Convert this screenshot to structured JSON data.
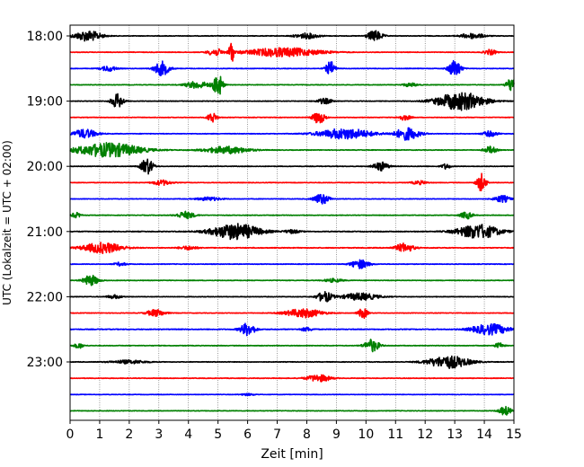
{
  "chart_data": {
    "type": "line",
    "title": "",
    "xlabel": "Zeit  [min]",
    "ylabel": "UTC (Lokalzeit = UTC + 02:00)",
    "xlim": [
      0,
      15
    ],
    "x_ticks": [
      "0",
      "1",
      "2",
      "3",
      "4",
      "5",
      "6",
      "7",
      "8",
      "9",
      "10",
      "11",
      "12",
      "13",
      "14",
      "15"
    ],
    "y_ticks": [
      {
        "label": "18:00",
        "row": 0
      },
      {
        "label": "19:00",
        "row": 4
      },
      {
        "label": "20:00",
        "row": 8
      },
      {
        "label": "21:00",
        "row": 12
      },
      {
        "label": "22:00",
        "row": 16
      },
      {
        "label": "23:00",
        "row": 20
      }
    ],
    "grid": "vertical dotted",
    "row_count": 24,
    "minutes_per_row": 15,
    "colors": [
      "#000000",
      "#ff0000",
      "#0000ff",
      "#008000"
    ],
    "series": [
      {
        "start": "18:00",
        "color": "#000000",
        "noise": 0.3,
        "events": [
          [
            0.6,
            0.9,
            6
          ],
          [
            10.3,
            0.5,
            6
          ],
          [
            8,
            0.8,
            3
          ],
          [
            13.6,
            0.8,
            3
          ]
        ]
      },
      {
        "start": "18:15",
        "color": "#ff0000",
        "noise": 0.3,
        "events": [
          [
            7.2,
            2.5,
            5
          ],
          [
            5.45,
            0.15,
            14
          ],
          [
            4.9,
            0.5,
            4
          ],
          [
            14.2,
            0.4,
            3
          ]
        ]
      },
      {
        "start": "18:30",
        "color": "#0000ff",
        "noise": 0.3,
        "events": [
          [
            3.1,
            0.5,
            8
          ],
          [
            8.8,
            0.3,
            8
          ],
          [
            13,
            0.4,
            10
          ],
          [
            1.3,
            0.5,
            3
          ]
        ]
      },
      {
        "start": "18:45",
        "color": "#008000",
        "noise": 0.3,
        "events": [
          [
            5,
            0.3,
            14
          ],
          [
            4.3,
            0.8,
            4
          ],
          [
            14.9,
            0.3,
            8
          ],
          [
            11.5,
            0.5,
            2
          ]
        ]
      },
      {
        "start": "19:00",
        "color": "#000000",
        "noise": 0.3,
        "events": [
          [
            1.6,
            0.4,
            8
          ],
          [
            13.2,
            1.6,
            10
          ],
          [
            8.6,
            0.5,
            3
          ]
        ]
      },
      {
        "start": "19:15",
        "color": "#ff0000",
        "noise": 0.3,
        "events": [
          [
            4.8,
            0.3,
            6
          ],
          [
            8.4,
            0.4,
            7
          ],
          [
            11.3,
            0.4,
            3
          ]
        ]
      },
      {
        "start": "19:30",
        "color": "#0000ff",
        "noise": 0.3,
        "events": [
          [
            0.5,
            0.8,
            5
          ],
          [
            9.3,
            1.8,
            6
          ],
          [
            11.4,
            0.8,
            7
          ],
          [
            14.2,
            0.5,
            3
          ]
        ]
      },
      {
        "start": "19:45",
        "color": "#008000",
        "noise": 0.3,
        "events": [
          [
            1.3,
            2.2,
            8
          ],
          [
            5.3,
            1.5,
            4
          ],
          [
            14.2,
            0.4,
            4
          ]
        ]
      },
      {
        "start": "20:00",
        "color": "#000000",
        "noise": 0.3,
        "events": [
          [
            2.6,
            0.4,
            9
          ],
          [
            10.5,
            0.5,
            5
          ],
          [
            12.7,
            0.3,
            3
          ]
        ]
      },
      {
        "start": "20:15",
        "color": "#ff0000",
        "noise": 0.3,
        "events": [
          [
            3.1,
            0.6,
            3
          ],
          [
            13.9,
            0.3,
            10
          ],
          [
            11.8,
            0.5,
            2
          ]
        ]
      },
      {
        "start": "20:30",
        "color": "#0000ff",
        "noise": 0.3,
        "events": [
          [
            8.5,
            0.5,
            6
          ],
          [
            4.7,
            0.8,
            2
          ],
          [
            14.6,
            0.5,
            4
          ]
        ]
      },
      {
        "start": "20:45",
        "color": "#008000",
        "noise": 0.3,
        "events": [
          [
            3.9,
            0.6,
            4
          ],
          [
            13.4,
            0.4,
            4
          ],
          [
            0.2,
            0.3,
            3
          ]
        ]
      },
      {
        "start": "21:00",
        "color": "#000000",
        "noise": 0.4,
        "events": [
          [
            5.6,
            1.6,
            9
          ],
          [
            13.8,
            1.4,
            8
          ],
          [
            7.5,
            0.5,
            2
          ]
        ]
      },
      {
        "start": "21:15",
        "color": "#ff0000",
        "noise": 0.4,
        "events": [
          [
            1.1,
            1.3,
            6
          ],
          [
            11.3,
            0.6,
            5
          ],
          [
            4,
            0.6,
            2
          ]
        ]
      },
      {
        "start": "21:30",
        "color": "#0000ff",
        "noise": 0.3,
        "events": [
          [
            9.8,
            0.6,
            5
          ],
          [
            1.7,
            0.4,
            2
          ]
        ]
      },
      {
        "start": "21:45",
        "color": "#008000",
        "noise": 0.3,
        "events": [
          [
            0.7,
            0.5,
            6
          ],
          [
            8.9,
            0.6,
            2
          ]
        ]
      },
      {
        "start": "22:00",
        "color": "#000000",
        "noise": 0.3,
        "events": [
          [
            8.6,
            0.5,
            6
          ],
          [
            9.8,
            1.2,
            4
          ],
          [
            1.5,
            0.5,
            2
          ]
        ]
      },
      {
        "start": "22:15",
        "color": "#ff0000",
        "noise": 0.3,
        "events": [
          [
            2.9,
            0.6,
            4
          ],
          [
            7.9,
            1.2,
            5
          ],
          [
            9.9,
            0.3,
            6
          ]
        ]
      },
      {
        "start": "22:30",
        "color": "#0000ff",
        "noise": 0.4,
        "events": [
          [
            6,
            0.5,
            7
          ],
          [
            14.2,
            1.2,
            6
          ],
          [
            8,
            0.4,
            2
          ]
        ]
      },
      {
        "start": "22:45",
        "color": "#008000",
        "noise": 0.3,
        "events": [
          [
            10.2,
            0.5,
            7
          ],
          [
            0.3,
            0.3,
            3
          ],
          [
            14.5,
            0.3,
            3
          ]
        ]
      },
      {
        "start": "23:00",
        "color": "#000000",
        "noise": 0.3,
        "events": [
          [
            12.8,
            1.4,
            7
          ],
          [
            2,
            1.2,
            2
          ]
        ]
      },
      {
        "start": "23:15",
        "color": "#ff0000",
        "noise": 0.3,
        "events": [
          [
            8.4,
            0.8,
            4
          ]
        ]
      },
      {
        "start": "23:30",
        "color": "#0000ff",
        "noise": 0.25,
        "events": [
          [
            6,
            0.5,
            1
          ]
        ]
      },
      {
        "start": "23:45",
        "color": "#008000",
        "noise": 0.3,
        "events": [
          [
            14.7,
            0.4,
            5
          ]
        ]
      }
    ]
  }
}
